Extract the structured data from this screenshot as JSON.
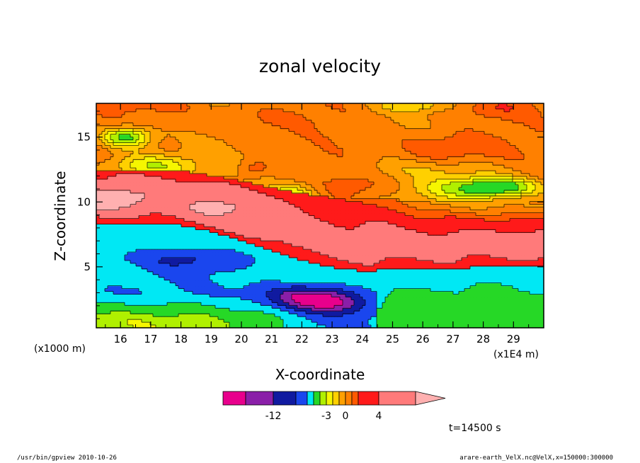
{
  "chart_data": {
    "type": "heatmap",
    "title": "zonal velocity",
    "xlabel": "X-coordinate",
    "ylabel": "Z-coordinate",
    "x_units_label": "(x1E4 m)",
    "y_units_label": "(x1000 m)",
    "xlim": [
      15.2,
      30
    ],
    "ylim": [
      0.3,
      17.6
    ],
    "x_ticks": [
      "16",
      "17",
      "18",
      "19",
      "20",
      "21",
      "22",
      "23",
      "24",
      "25",
      "26",
      "27",
      "28",
      "29"
    ],
    "y_ticks": [
      "5",
      "10",
      "15"
    ],
    "colorbar": {
      "levels": [
        -14,
        -12,
        -10,
        -8,
        -6,
        -4,
        -3,
        -2,
        -1,
        0,
        1,
        2,
        4,
        6,
        10
      ],
      "colors": [
        "#e8008c",
        "#8a1fa8",
        "#101aa0",
        "#1a46ee",
        "#00e8f4",
        "#26d826",
        "#b0f000",
        "#f6f600",
        "#ffd000",
        "#ffa000",
        "#ff8000",
        "#ff5a00",
        "#ff1a1a",
        "#ff7a7a",
        "#ffb0b0"
      ],
      "tick_labels": [
        {
          "value": -12,
          "text": "-12"
        },
        {
          "value": -3,
          "text": "-3"
        },
        {
          "value": 0,
          "text": "0"
        },
        {
          "value": 4,
          "text": "4"
        }
      ]
    },
    "grid": false,
    "legend": "none"
  },
  "annotation": {
    "time": "t=14500 s"
  },
  "footer": {
    "left": "/usr/bin/gpview  2010-10-26",
    "right": "arare-earth_VelX.nc@VelX,x=150000:300000"
  }
}
